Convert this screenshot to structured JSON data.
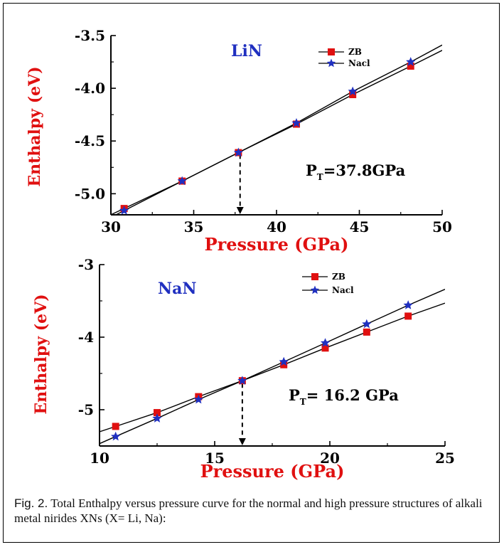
{
  "chart_data": [
    {
      "type": "line",
      "title": "LiN",
      "xlabel": "Pressure (GPa)",
      "ylabel": "Enthalpy (eV)",
      "xlim": [
        30,
        50
      ],
      "ylim": [
        -5.2,
        -3.5
      ],
      "xticks": [
        30,
        35,
        40,
        45,
        50
      ],
      "yticks": [
        -5.0,
        -4.5,
        -4.0,
        -3.5
      ],
      "ytick_labels": [
        "-5.0",
        "-4.5",
        "-4.0",
        "-3.5"
      ],
      "xtick_labels": [
        "30",
        "35",
        "40",
        "45",
        "50"
      ],
      "legend_position": "top-right",
      "annotation": {
        "main": "P",
        "sub": "T",
        "rest": "=37.8GPa"
      },
      "transition_x": 37.8,
      "series": [
        {
          "name": "ZB",
          "marker": "square",
          "color": "#e01010",
          "x": [
            30.8,
            34.3,
            37.7,
            41.2,
            44.6,
            48.1
          ],
          "y": [
            -5.14,
            -4.88,
            -4.61,
            -4.34,
            -4.06,
            -3.79
          ],
          "line_end": [
            50,
            -3.64
          ]
        },
        {
          "name": "Nacl",
          "marker": "star",
          "color": "#2030c0",
          "x": [
            30.8,
            34.3,
            37.7,
            41.2,
            44.6,
            48.1
          ],
          "y": [
            -5.16,
            -4.88,
            -4.61,
            -4.33,
            -4.03,
            -3.75
          ],
          "line_end": [
            50,
            -3.59
          ]
        }
      ]
    },
    {
      "type": "line",
      "title": "NaN",
      "xlabel": "Pressure (GPa)",
      "ylabel": "Enthalpy (eV)",
      "xlim": [
        10,
        25
      ],
      "ylim": [
        -5.5,
        -3
      ],
      "xticks": [
        10,
        15,
        20,
        25
      ],
      "yticks": [
        -5,
        -4,
        -3
      ],
      "ytick_labels": [
        "-5",
        "-4",
        "-3"
      ],
      "xtick_labels": [
        "10",
        "15",
        "20",
        "25"
      ],
      "legend_position": "top-right",
      "annotation": {
        "main": "P",
        "sub": "T",
        "rest": "= 16.2 GPa"
      },
      "transition_x": 16.2,
      "series": [
        {
          "name": "ZB",
          "marker": "square",
          "color": "#e01010",
          "x": [
            10.7,
            12.5,
            14.3,
            16.2,
            18.0,
            19.8,
            21.6,
            23.4
          ],
          "y": [
            -5.23,
            -5.04,
            -4.82,
            -4.6,
            -4.38,
            -4.15,
            -3.93,
            -3.71
          ],
          "line_end": [
            25,
            -3.53
          ]
        },
        {
          "name": "Nacl",
          "marker": "star",
          "color": "#2030c0",
          "x": [
            10.7,
            12.5,
            14.3,
            16.2,
            18.0,
            19.8,
            21.6,
            23.4
          ],
          "y": [
            -5.37,
            -5.12,
            -4.86,
            -4.6,
            -4.34,
            -4.08,
            -3.82,
            -3.56
          ],
          "line_end": [
            25,
            -3.34
          ]
        }
      ]
    }
  ],
  "caption": {
    "fig_label": "Fig. 2.",
    "text": " Total Enthalpy versus pressure curve for the normal and high pressure structures of alkali metal nirides XNs (X= Li, Na):"
  }
}
